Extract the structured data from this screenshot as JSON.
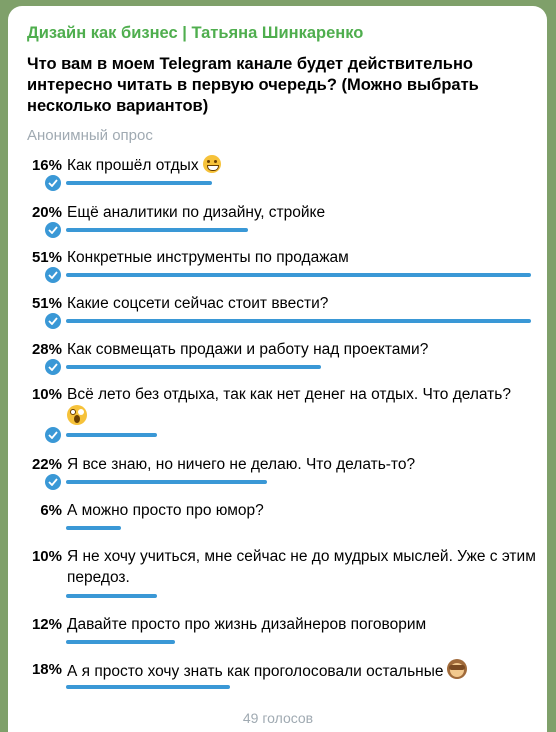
{
  "channel_name": "Дизайн как бизнес | Татьяна Шинкаренко",
  "question": "Что вам в моем Telegram канале будет действительно интересно читать в первую очередь? (Можно выбрать несколько вариантов)",
  "poll_type": "Анонимный опрос",
  "accent_color": "#3a98d6",
  "options": [
    {
      "percent": "16%",
      "value": 16,
      "text": "Как прошёл отдых",
      "emoji": "grinning-face-icon"
    },
    {
      "percent": "20%",
      "value": 20,
      "text": "Ещё аналитики по дизайну, стройке"
    },
    {
      "percent": "51%",
      "value": 51,
      "text": "Конкретные инструменты по продажам"
    },
    {
      "percent": "51%",
      "value": 51,
      "text": "Какие соцсети сейчас стоит ввести?"
    },
    {
      "percent": "28%",
      "value": 28,
      "text": "Как совмещать продажи и работу над проектами?"
    },
    {
      "percent": "10%",
      "value": 10,
      "text": "Всё лето без отдыха, так как нет денег на отдых. Что делать?",
      "emoji": "screaming-face-icon"
    },
    {
      "percent": "22%",
      "value": 22,
      "text": "Я все знаю, но ничего не делаю. Что делать-то?"
    },
    {
      "percent": "6%",
      "value": 6,
      "text": "А можно просто про юмор?"
    },
    {
      "percent": "10%",
      "value": 10,
      "text": "Я не хочу учиться, мне сейчас не до мудрых мыслей. Уже с этим передоз."
    },
    {
      "percent": "12%",
      "value": 12,
      "text": "Давайте просто про жизнь дизайнеров поговорим"
    },
    {
      "percent": "18%",
      "value": 18,
      "text": "А я просто хочу знать как проголосовали остальные",
      "emoji": "see-no-evil-monkey-icon"
    }
  ],
  "votes_label": "49 голосов"
}
